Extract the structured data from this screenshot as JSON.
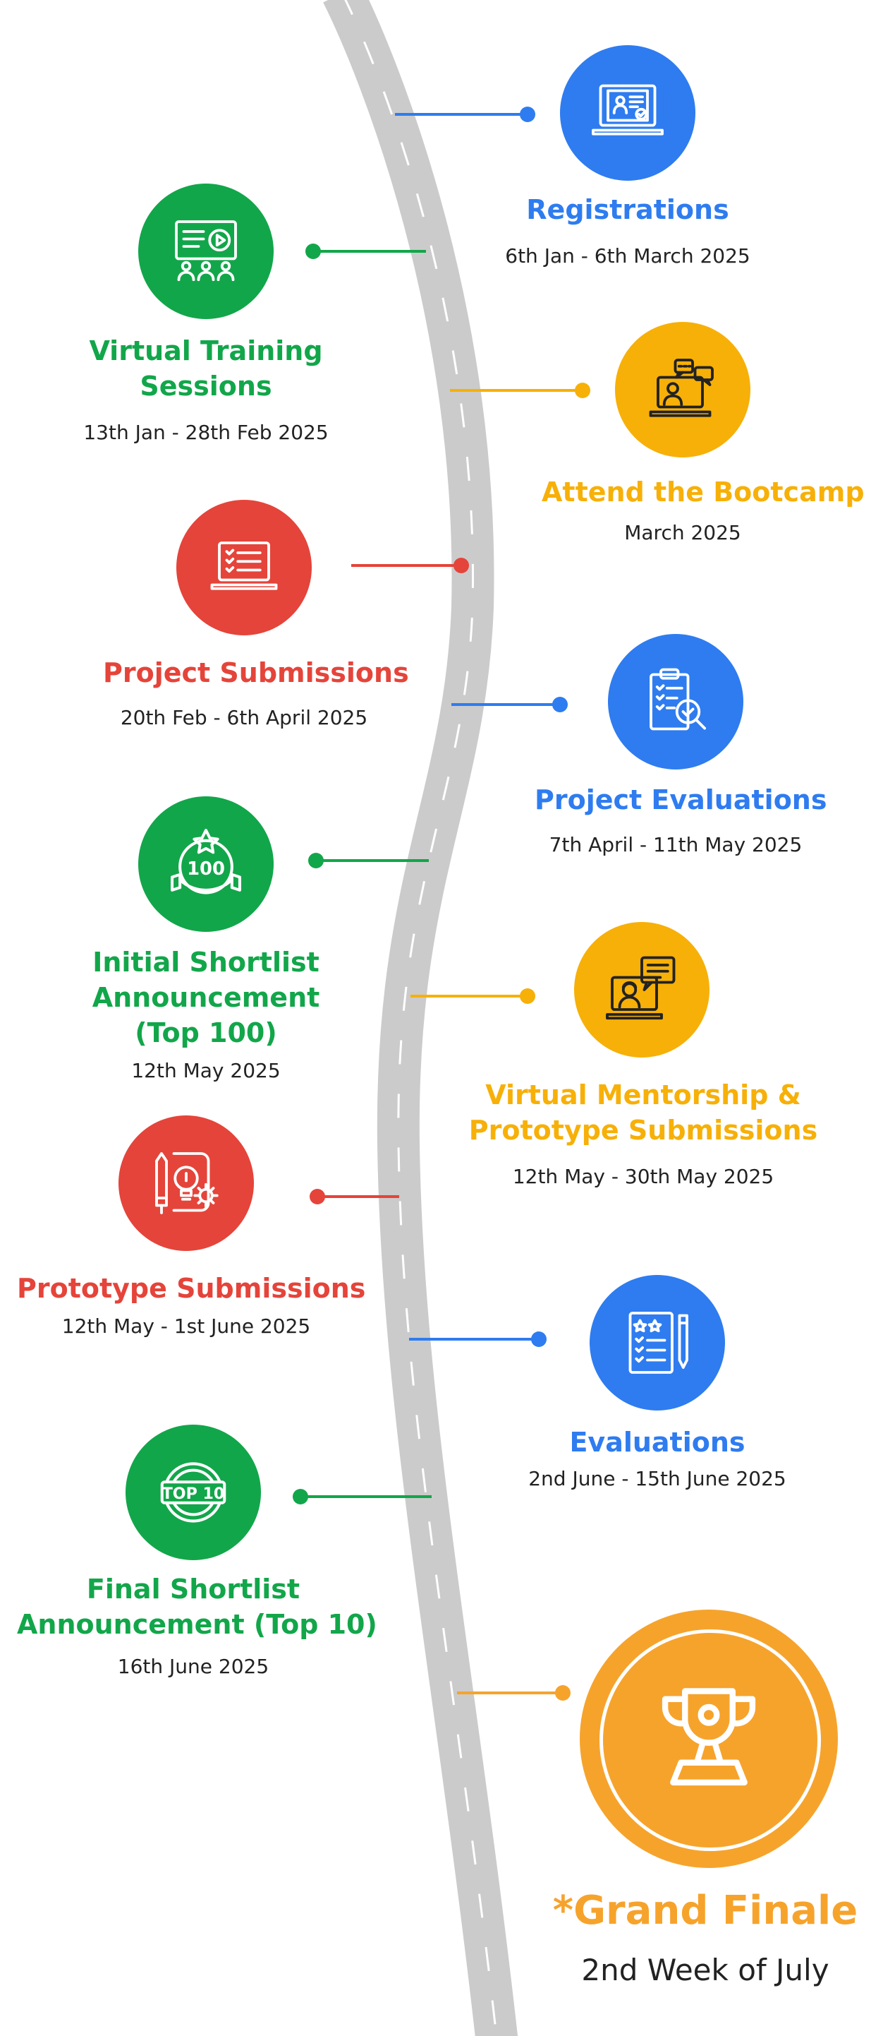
{
  "colors": {
    "blue": "#2E7CF0",
    "green": "#12A64A",
    "yellow": "#F7B008",
    "red": "#E5443A",
    "orange": "#F6A32C",
    "road": "#CBCBCB",
    "dash": "#FFFFFF",
    "date_text": "#222222"
  },
  "milestones": [
    {
      "title_lines": [
        "Registrations"
      ],
      "date": "6th Jan - 6th March 2025",
      "color": "blue",
      "icon": "laptop-profile-icon"
    },
    {
      "title_lines": [
        "Virtual Training",
        "Sessions"
      ],
      "date": "13th Jan - 28th Feb 2025",
      "color": "green",
      "icon": "presentation-video-icon"
    },
    {
      "title_lines": [
        "Attend the Bootcamp"
      ],
      "date": "March 2025",
      "color": "yellow",
      "icon": "laptop-chat-user-icon"
    },
    {
      "title_lines": [
        "Project Submissions"
      ],
      "date": "20th Feb - 6th April 2025",
      "color": "red",
      "icon": "laptop-checklist-icon"
    },
    {
      "title_lines": [
        "Project Evaluations"
      ],
      "date": "7th April - 11th May 2025",
      "color": "blue",
      "icon": "clipboard-magnifier-icon"
    },
    {
      "title_lines": [
        "Initial Shortlist",
        "Announcement",
        "(Top 100)"
      ],
      "date": "12th May 2025",
      "color": "green",
      "icon": "top-100-badge-icon"
    },
    {
      "title_lines": [
        "Virtual Mentorship &",
        "Prototype Submissions"
      ],
      "date": "12th May - 30th May 2025",
      "color": "yellow",
      "icon": "mentor-chat-icon"
    },
    {
      "title_lines": [
        "Prototype Submissions"
      ],
      "date": "12th May - 1st June 2025",
      "color": "red",
      "icon": "pencil-lightbulb-gear-icon"
    },
    {
      "title_lines": [
        "Evaluations"
      ],
      "date": "2nd June - 15th June 2025",
      "color": "blue",
      "icon": "checklist-stars-pencil-icon"
    },
    {
      "title_lines": [
        "Final Shortlist",
        "Announcement (Top 10)"
      ],
      "date": "16th June 2025",
      "color": "green",
      "icon": "top-10-badge-icon"
    }
  ],
  "finale": {
    "title": "*Grand Finale",
    "date": "2nd Week of July",
    "color": "orange",
    "icon": "trophy-icon"
  }
}
